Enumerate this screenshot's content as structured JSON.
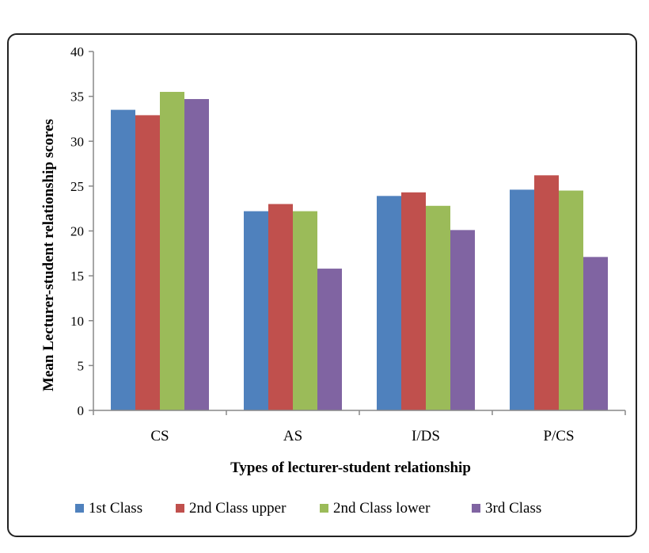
{
  "chart_data": {
    "type": "bar",
    "title": "",
    "xlabel": "Types of lecturer-student relationship",
    "ylabel": "Mean Lecturer-student relationship scores",
    "ylim": [
      0,
      40
    ],
    "yticks": [
      0,
      5,
      10,
      15,
      20,
      25,
      30,
      35,
      40
    ],
    "categories": [
      "CS",
      "AS",
      "I/DS",
      "P/CS"
    ],
    "series": [
      {
        "name": "1st Class",
        "color": "#4f81bd",
        "values": [
          33.5,
          22.2,
          23.9,
          24.6
        ]
      },
      {
        "name": "2nd Class upper",
        "color": "#c0504d",
        "values": [
          32.9,
          23.0,
          24.3,
          26.2
        ]
      },
      {
        "name": "2nd Class lower",
        "color": "#9bbb59",
        "values": [
          35.5,
          22.2,
          22.8,
          24.5
        ]
      },
      {
        "name": "3rd Class",
        "color": "#8064a2",
        "values": [
          34.7,
          15.8,
          20.1,
          17.1
        ]
      }
    ],
    "grid": false,
    "legend_position": "bottom"
  }
}
